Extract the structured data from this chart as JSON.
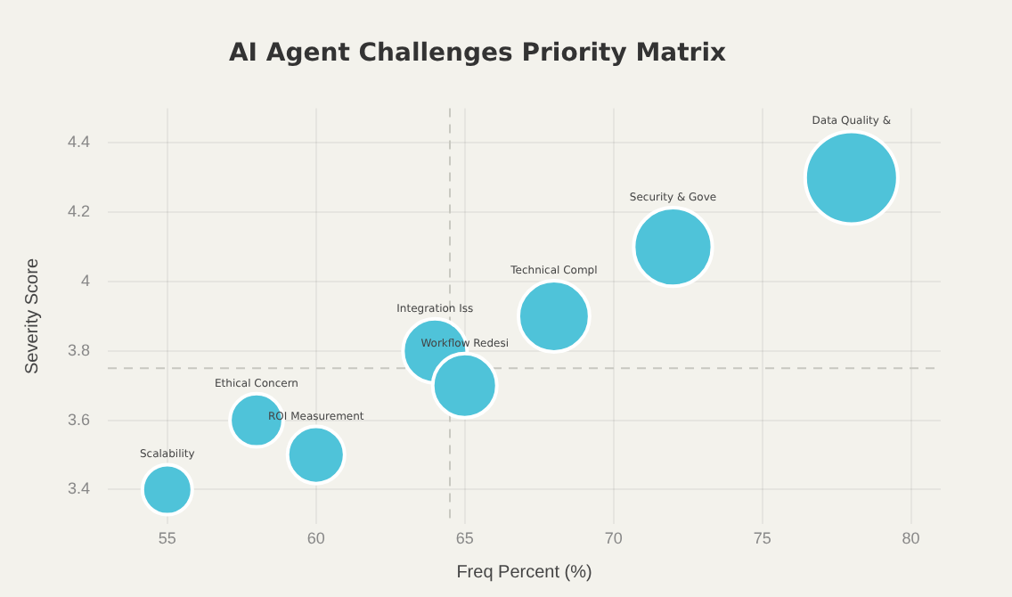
{
  "chart_data": {
    "type": "bubble",
    "title": "AI Agent Challenges Priority Matrix",
    "xlabel": "Freq Percent (%)",
    "ylabel": "Severity Score",
    "series": [
      {
        "color": "#4fc3d9",
        "x": [
          55,
          58,
          60,
          64,
          65,
          68,
          72,
          78
        ],
        "values": [
          3.4,
          3.6,
          3.5,
          3.8,
          3.7,
          3.9,
          4.1,
          4.3
        ],
        "sizes": [
          0.29,
          0.33,
          0.38,
          0.48,
          0.48,
          0.59,
          0.72,
          1
        ]
      }
    ],
    "xlim": [
      53,
      81
    ],
    "xticks": [
      55,
      60,
      65,
      70,
      75,
      80
    ],
    "ylim": [
      3.3,
      4.5
    ],
    "yticks": [
      3.4,
      3.6,
      3.8,
      {
        "value": 4,
        "label": "4"
      },
      4.2,
      4.4
    ],
    "grid": true,
    "legend": false,
    "ref_lines": [
      {
        "axis": "x",
        "value": 64.5,
        "line_style": "dashed",
        "color": "#c8c8c0"
      },
      {
        "axis": "y",
        "value": 3.75,
        "line_style": "dashed",
        "color": "#c8c8c0"
      }
    ],
    "annotations": [
      "Scalability",
      "Ethical Concern",
      "ROI Measurement",
      "Integration Iss",
      "Workflow Redesi",
      "Technical Compl",
      "Security & Gove",
      "Data Quality &"
    ]
  }
}
